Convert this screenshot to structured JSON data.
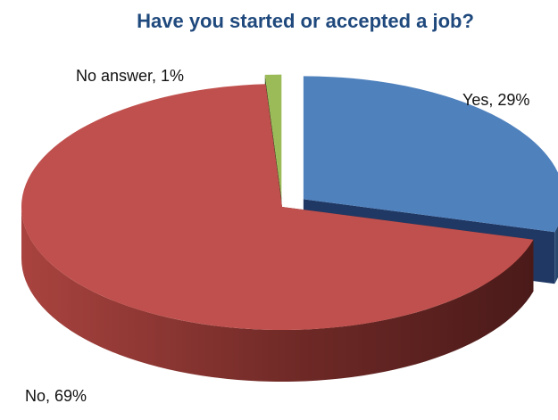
{
  "chart_data": {
    "type": "pie",
    "title": "Have you started or accepted a job?",
    "slices": [
      {
        "name": "Yes",
        "value": 29,
        "label": "Yes, 29%",
        "color": "#4F81BD"
      },
      {
        "name": "No",
        "value": 69,
        "label": "No, 69%",
        "color": "#C0504D"
      },
      {
        "name": "No answer",
        "value": 1,
        "label": "No answer, 1%",
        "color": "#9BBB59"
      }
    ],
    "style": "3d-exploded",
    "title_color": "#1F497D"
  }
}
